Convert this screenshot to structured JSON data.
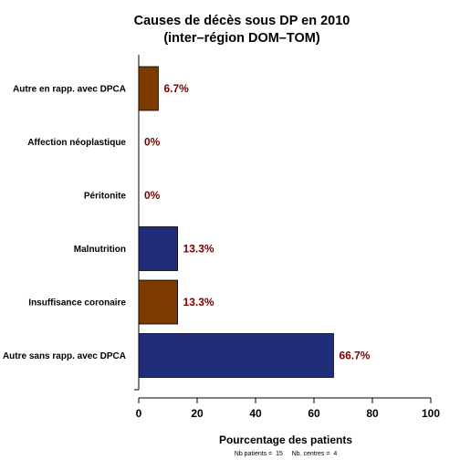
{
  "chart_data": {
    "type": "bar",
    "orientation": "horizontal",
    "title": [
      "Causes de décès sous DP en 2010",
      "(inter–région DOM–TOM)"
    ],
    "xlabel": "Pourcentage des patients",
    "ylabel": "",
    "xlim": [
      0,
      100
    ],
    "xticks": [
      0,
      20,
      40,
      60,
      80,
      100
    ],
    "categories": [
      "Autre en rapp. avec DPCA",
      "Affection néoplastique",
      "Péritonite",
      "Malnutrition",
      "Insuffisance coronaire",
      "Autre sans rapp. avec DPCA"
    ],
    "values": [
      6.7,
      0,
      0,
      13.3,
      13.3,
      66.7
    ],
    "value_labels": [
      "6.7%",
      "0%",
      "0%",
      "13.3%",
      "13.3%",
      "66.7%"
    ],
    "bar_colors": [
      "#7B3A00",
      "#7B3A00",
      "#7B3A00",
      "#1F2D7A",
      "#7B3A00",
      "#1F2D7A"
    ],
    "value_label_color": "#7A0000",
    "grid": false,
    "footnote": "Nb patients =  15     Nb. centres =  4"
  }
}
